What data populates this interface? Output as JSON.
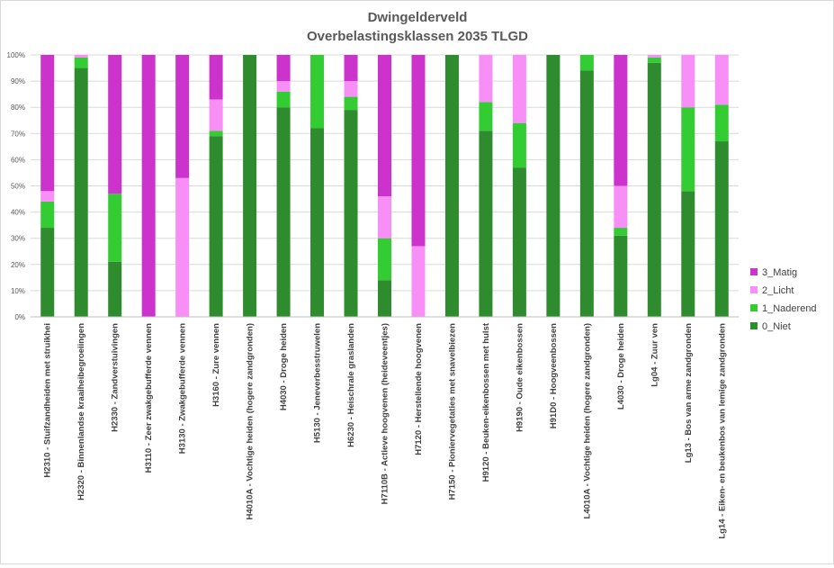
{
  "chart_data": {
    "type": "bar",
    "stacked": "percent",
    "title": "Dwingelderveld",
    "subtitle": "Overbelastingsklassen 2035 TLGD",
    "xlabel": "",
    "ylabel": "",
    "ylim": [
      0,
      100
    ],
    "yticks": [
      "0%",
      "10%",
      "20%",
      "30%",
      "40%",
      "50%",
      "60%",
      "70%",
      "80%",
      "90%",
      "100%"
    ],
    "grid": true,
    "legend_position": "right",
    "categories": [
      "H2310 - Stuifzandheiden met struikhei",
      "H2320 - Binnenlandse kraaiheibegroeiingen",
      "H2330 - Zandverstuivingen",
      "H3110 - Zeer zwakgebufferde vennen",
      "H3130 - Zwakgebufferde vennen",
      "H3160 - Zure vennen",
      "H4010A - Vochtige heiden (hogere zandgronden)",
      "H4030 - Droge heiden",
      "H5130 - Jeneverbesstruwelen",
      "H6230 - Heischrale graslanden",
      "H7110B - Actieve hoogvenen (heideveentjes)",
      "H7120 - Herstellende hoogvenen",
      "H7150 - Pioniervegetaties met snavelbiezen",
      "H9120 - Beuken-eikenbossen met hulst",
      "H9190 - Oude eikenbossen",
      "H91D0 - Hoogveenbossen",
      "L4010A - Vochtige heiden (hogere zandgronden)",
      "L4030 - Droge heiden",
      "Lg04 - Zuur ven",
      "Lg13 - Bos van arme zandgronden",
      "Lg14 - Eiken- en beukenbos van lemige zandgronden"
    ],
    "series": [
      {
        "name": "0_Niet",
        "color": "#2e8b2e",
        "values": [
          34,
          95,
          21,
          0,
          0,
          69,
          100,
          80,
          72,
          79,
          14,
          0,
          100,
          71,
          57,
          100,
          94,
          31,
          97,
          48,
          67
        ]
      },
      {
        "name": "1_Naderend",
        "color": "#33cc33",
        "values": [
          10,
          4,
          26,
          0,
          0,
          2,
          0,
          6,
          28,
          5,
          16,
          0,
          0,
          11,
          17,
          0,
          6,
          3,
          2,
          32,
          14
        ]
      },
      {
        "name": "2_Licht",
        "color": "#f78ff7",
        "values": [
          4,
          1,
          0,
          0,
          53,
          12,
          0,
          4,
          0,
          6,
          16,
          27,
          0,
          18,
          26,
          0,
          0,
          16,
          1,
          20,
          19
        ]
      },
      {
        "name": "3_Matig",
        "color": "#cc33cc",
        "values": [
          52,
          0,
          53,
          100,
          47,
          17,
          0,
          10,
          0,
          10,
          54,
          73,
          0,
          0,
          0,
          0,
          0,
          50,
          0,
          0,
          0
        ]
      }
    ],
    "legend_order": [
      "3_Matig",
      "2_Licht",
      "1_Naderend",
      "0_Niet"
    ]
  }
}
